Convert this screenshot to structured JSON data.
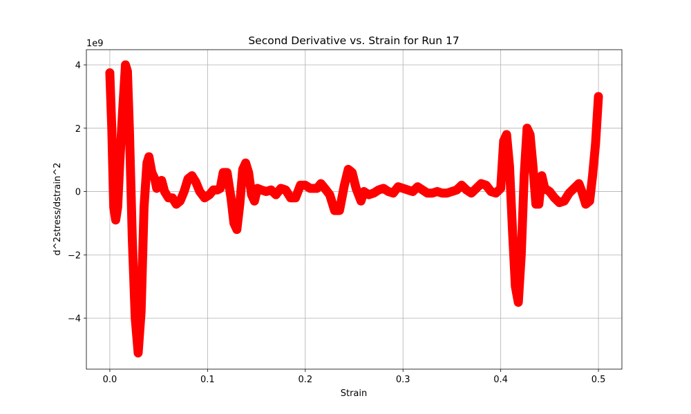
{
  "chart_data": {
    "type": "line",
    "title": "Second Derivative vs. Strain for Run 17",
    "x_label": "Strain",
    "y_label": "d^2stress/dstrain^2",
    "y_offset_label": "1e9",
    "x": [
      0.0,
      0.002,
      0.004,
      0.006,
      0.008,
      0.01,
      0.013,
      0.016,
      0.018,
      0.02,
      0.023,
      0.026,
      0.029,
      0.032,
      0.035,
      0.038,
      0.04,
      0.043,
      0.046,
      0.048,
      0.05,
      0.053,
      0.056,
      0.06,
      0.064,
      0.068,
      0.072,
      0.076,
      0.08,
      0.084,
      0.088,
      0.092,
      0.097,
      0.102,
      0.106,
      0.11,
      0.113,
      0.116,
      0.12,
      0.124,
      0.127,
      0.13,
      0.133,
      0.136,
      0.139,
      0.142,
      0.145,
      0.148,
      0.151,
      0.155,
      0.16,
      0.165,
      0.17,
      0.175,
      0.18,
      0.185,
      0.19,
      0.195,
      0.2,
      0.205,
      0.212,
      0.216,
      0.22,
      0.225,
      0.23,
      0.235,
      0.24,
      0.244,
      0.248,
      0.252,
      0.257,
      0.26,
      0.265,
      0.27,
      0.275,
      0.28,
      0.285,
      0.29,
      0.295,
      0.3,
      0.305,
      0.31,
      0.315,
      0.32,
      0.325,
      0.33,
      0.335,
      0.34,
      0.345,
      0.35,
      0.355,
      0.36,
      0.365,
      0.37,
      0.375,
      0.38,
      0.385,
      0.39,
      0.395,
      0.4,
      0.403,
      0.406,
      0.409,
      0.412,
      0.415,
      0.418,
      0.421,
      0.424,
      0.427,
      0.43,
      0.433,
      0.436,
      0.439,
      0.442,
      0.445,
      0.45,
      0.455,
      0.46,
      0.465,
      0.47,
      0.475,
      0.48,
      0.483,
      0.487,
      0.491,
      0.494,
      0.497,
      0.5
    ],
    "series": [
      {
        "color": "#ff0000",
        "values": [
          3.75,
          2.0,
          -0.5,
          -0.9,
          -0.5,
          0.8,
          2.5,
          4.0,
          3.8,
          2.0,
          -1.5,
          -4.0,
          -5.1,
          -3.8,
          -0.5,
          0.9,
          1.1,
          0.6,
          0.4,
          0.1,
          0.2,
          0.35,
          0.0,
          -0.2,
          -0.2,
          -0.4,
          -0.3,
          0.0,
          0.4,
          0.5,
          0.3,
          0.0,
          -0.2,
          -0.1,
          0.05,
          0.05,
          0.1,
          0.6,
          0.6,
          -0.2,
          -1.0,
          -1.2,
          -0.4,
          0.7,
          0.9,
          0.6,
          -0.1,
          -0.3,
          0.1,
          0.05,
          0.0,
          0.05,
          -0.1,
          0.1,
          0.05,
          -0.2,
          -0.2,
          0.2,
          0.2,
          0.1,
          0.1,
          0.25,
          0.1,
          -0.1,
          -0.6,
          -0.6,
          0.2,
          0.7,
          0.6,
          0.1,
          -0.3,
          0.0,
          -0.1,
          -0.05,
          0.05,
          0.1,
          0.0,
          -0.05,
          0.15,
          0.1,
          0.05,
          0.0,
          0.15,
          0.05,
          -0.05,
          -0.05,
          0.0,
          -0.05,
          -0.05,
          0.0,
          0.05,
          0.2,
          0.05,
          -0.05,
          0.1,
          0.25,
          0.2,
          0.0,
          -0.05,
          0.1,
          1.6,
          1.8,
          0.8,
          -1.2,
          -3.0,
          -3.5,
          -2.0,
          0.5,
          2.0,
          1.8,
          0.8,
          -0.4,
          -0.4,
          0.5,
          0.1,
          0.0,
          -0.2,
          -0.35,
          -0.3,
          -0.05,
          0.1,
          0.25,
          0.0,
          -0.4,
          -0.3,
          0.5,
          1.5,
          3.0
        ]
      }
    ],
    "xlim": [
      -0.024,
      0.524
    ],
    "ylim": [
      -5.61,
      4.48
    ],
    "xticks": [
      {
        "value": 0,
        "label": "0.0"
      },
      0.1,
      0.2,
      0.3,
      0.4,
      0.5
    ],
    "yticks": [
      {
        "value": -4,
        "label": "−4"
      },
      {
        "value": -2,
        "label": "−2"
      },
      0,
      2,
      4
    ],
    "grid": true
  }
}
